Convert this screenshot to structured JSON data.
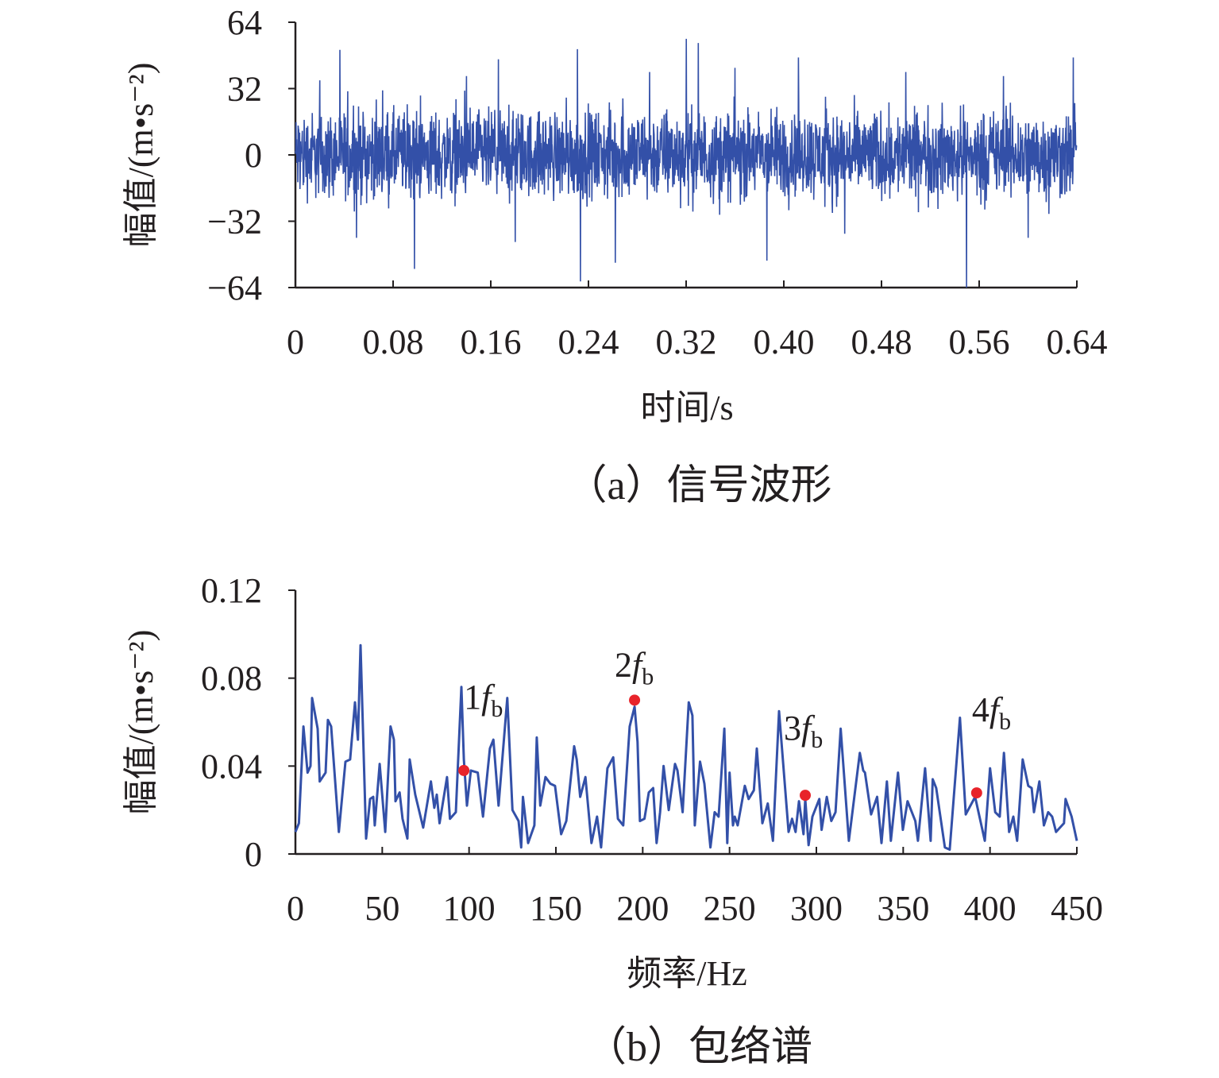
{
  "chart_data": [
    {
      "type": "line",
      "title": "",
      "caption": "（a）信号波形",
      "xlabel": "时间/s",
      "ylabel": "幅值/(m•s⁻²)",
      "xlim": [
        0,
        0.64
      ],
      "ylim": [
        -64,
        64
      ],
      "xticks": [
        "0",
        "0.08",
        "0.16",
        "0.24",
        "0.32",
        "0.40",
        "0.48",
        "0.56",
        "0.64"
      ],
      "xtick_values": [
        0,
        0.08,
        0.16,
        0.24,
        0.32,
        0.4,
        0.48,
        0.56,
        0.64
      ],
      "yticks": [
        "64",
        "32",
        "0",
        "−32",
        "−64"
      ],
      "ytick_values": [
        64,
        32,
        0,
        -32,
        -64
      ],
      "series_color": "#3350a8",
      "noise_rms": 12,
      "sample_count": 2600,
      "spikes": [
        [
          0.0976,
          -55
        ],
        [
          0.231,
          51
        ],
        [
          0.2335,
          -61
        ],
        [
          0.262,
          -52
        ],
        [
          0.32,
          56
        ],
        [
          0.33,
          54
        ],
        [
          0.386,
          -51
        ],
        [
          0.412,
          47
        ],
        [
          0.5496,
          -64
        ],
        [
          0.637,
          47
        ],
        [
          0.02,
          36
        ],
        [
          0.05,
          -40
        ],
        [
          0.14,
          38
        ],
        [
          0.18,
          -42
        ],
        [
          0.29,
          40
        ],
        [
          0.36,
          42
        ],
        [
          0.45,
          -38
        ],
        [
          0.5,
          40
        ],
        [
          0.58,
          38
        ],
        [
          0.6,
          -40
        ]
      ]
    },
    {
      "type": "line",
      "title": "",
      "caption": "（b）包络谱",
      "xlabel": "频率/Hz",
      "ylabel": "幅值/(m•s⁻²)",
      "xlim": [
        0,
        450
      ],
      "ylim": [
        0,
        0.12
      ],
      "xticks": [
        "0",
        "50",
        "100",
        "150",
        "200",
        "250",
        "300",
        "350",
        "400",
        "450"
      ],
      "xtick_values": [
        0,
        50,
        100,
        150,
        200,
        250,
        300,
        350,
        400,
        450
      ],
      "yticks": [
        "0.12",
        "0.08",
        "0.04",
        "0"
      ],
      "ytick_values": [
        0.12,
        0.08,
        0.04,
        0
      ],
      "series_color": "#3350a8",
      "marker_color": "#e8232a",
      "x": [
        0,
        2,
        4.6,
        7,
        8.7,
        9.6,
        12.8,
        14,
        17.4,
        18.7,
        20.6,
        25,
        28.8,
        31.5,
        34.3,
        36,
        37.5,
        40.7,
        43,
        44.8,
        45.7,
        48.5,
        51.7,
        54.8,
        56.7,
        57.6,
        60,
        61.7,
        64.5,
        65.8,
        69,
        73.6,
        78,
        80,
        81.4,
        83,
        87.3,
        89,
        92.4,
        95.6,
        97,
        98.8,
        101,
        105,
        108,
        112,
        114,
        117,
        122,
        125,
        128.5,
        130,
        131,
        134,
        137.6,
        139,
        141,
        144,
        146.8,
        149.5,
        153,
        156,
        160.5,
        162,
        164,
        167,
        170.5,
        173.7,
        176,
        179.7,
        183,
        185.7,
        188.8,
        192.5,
        195.3,
        197,
        198.4,
        201,
        203.5,
        206,
        208,
        210,
        212,
        215,
        218.6,
        220,
        223,
        226.5,
        228.6,
        230,
        233,
        235.5,
        239,
        241.4,
        243.7,
        247,
        248.7,
        250,
        252,
        253,
        254.7,
        258.8,
        261,
        264,
        265.7,
        268.9,
        272,
        275,
        278.5,
        284,
        286,
        288,
        290,
        292.6,
        293.6,
        295.5,
        297.7,
        301.7,
        303,
        306,
        308.6,
        311,
        314,
        318.7,
        325,
        327,
        328,
        331.5,
        335,
        337.5,
        340.6,
        342.9,
        347,
        349.8,
        352.5,
        354,
        357,
        358.5,
        362.6,
        365.8,
        367,
        369,
        374,
        376.8,
        382.7,
        386,
        391.4,
        397,
        400,
        403,
        405.6,
        408,
        411,
        413.4,
        415.6,
        418.8,
        422,
        424,
        425.3,
        428.4,
        431,
        433.5,
        435.8,
        438,
        442.6,
        443.5,
        447,
        450
      ],
      "y": [
        0.01,
        0.014,
        0.058,
        0.037,
        0.04,
        0.071,
        0.057,
        0.033,
        0.037,
        0.061,
        0.058,
        0.01,
        0.042,
        0.043,
        0.069,
        0.052,
        0.095,
        0.007,
        0.025,
        0.026,
        0.013,
        0.041,
        0.01,
        0.058,
        0.052,
        0.024,
        0.028,
        0.016,
        0.007,
        0.043,
        0.027,
        0.012,
        0.033,
        0.021,
        0.027,
        0.014,
        0.035,
        0.016,
        0.019,
        0.076,
        0.043,
        0.022,
        0.038,
        0.037,
        0.017,
        0.048,
        0.052,
        0.022,
        0.071,
        0.02,
        0.015,
        0.003,
        0.026,
        0.005,
        0.013,
        0.053,
        0.022,
        0.035,
        0.032,
        0.031,
        0.009,
        0.015,
        0.049,
        0.043,
        0.026,
        0.035,
        0.005,
        0.017,
        0.003,
        0.039,
        0.044,
        0.016,
        0.013,
        0.058,
        0.067,
        0.051,
        0.015,
        0.016,
        0.028,
        0.03,
        0.005,
        0.019,
        0.04,
        0.02,
        0.041,
        0.038,
        0.019,
        0.069,
        0.063,
        0.013,
        0.042,
        0.032,
        0.003,
        0.019,
        0.017,
        0.057,
        0.005,
        0.037,
        0.013,
        0.017,
        0.013,
        0.031,
        0.025,
        0.029,
        0.048,
        0.014,
        0.023,
        0.006,
        0.065,
        0.01,
        0.016,
        0.01,
        0.024,
        0.009,
        0.025,
        0.004,
        0.017,
        0.025,
        0.011,
        0.026,
        0.015,
        0.019,
        0.057,
        0.006,
        0.046,
        0.038,
        0.037,
        0.018,
        0.026,
        0.005,
        0.033,
        0.006,
        0.037,
        0.011,
        0.024,
        0.021,
        0.015,
        0.006,
        0.039,
        0.006,
        0.034,
        0.03,
        0.003,
        0.002,
        0.062,
        0.018,
        0.026,
        0.006,
        0.039,
        0.019,
        0.017,
        0.046,
        0.01,
        0.017,
        0.006,
        0.043,
        0.031,
        0.03,
        0.019,
        0.033,
        0.013,
        0.019,
        0.017,
        0.01,
        0.014,
        0.025,
        0.017,
        0.006
      ],
      "markers": [
        {
          "x": 97,
          "y": 0.038,
          "num": "1",
          "sym": "f",
          "sub": "b"
        },
        {
          "x": 195.3,
          "y": 0.07,
          "num": "2",
          "sym": "f",
          "sub": "b"
        },
        {
          "x": 293.6,
          "y": 0.0267,
          "num": "3",
          "sym": "f",
          "sub": "b"
        },
        {
          "x": 392.3,
          "y": 0.0278,
          "num": "4",
          "sym": "f",
          "sub": "b"
        }
      ]
    }
  ]
}
